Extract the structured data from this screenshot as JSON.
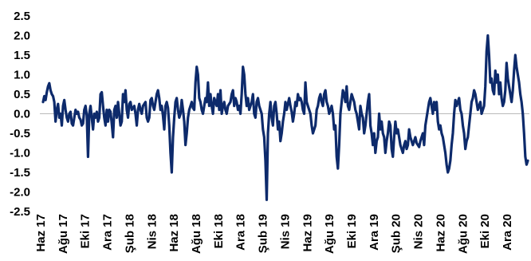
{
  "chart_data": {
    "type": "line",
    "title": "",
    "xlabel": "",
    "ylabel": "",
    "ylim": [
      -2.5,
      2.5
    ],
    "y_ticks": [
      "2.5",
      "2.0",
      "1.5",
      "1.0",
      "0.5",
      "0.0",
      "-0.5",
      "-1.0",
      "-1.5",
      "-2.0",
      "-2.5"
    ],
    "y_tick_values": [
      2.5,
      2.0,
      1.5,
      1.0,
      0.5,
      0.0,
      -0.5,
      -1.0,
      -1.5,
      -2.0,
      -2.5
    ],
    "x_ticks": [
      "Haz 17",
      "Ağu 17",
      "Eki 17",
      "Ara 17",
      "Şub 18",
      "Nis 18",
      "Haz 18",
      "Ağu 18",
      "Eki 18",
      "Ara 18",
      "Şub 19",
      "Nis 19",
      "Haz 19",
      "Ağu 19",
      "Eki 19",
      "Ara 19",
      "Şub 20",
      "Nis 20",
      "Haz 20",
      "Ağu 20",
      "Eki 20",
      "Ara 20"
    ],
    "grid": false,
    "legend": "none",
    "series_color": "#0d2a6b",
    "series": [
      {
        "x_start": "Haz 17",
        "x_end": "Ara 20+",
        "values": [
          0.3,
          0.45,
          0.35,
          0.55,
          0.7,
          0.78,
          0.6,
          0.5,
          0.45,
          0.3,
          -0.2,
          0.1,
          0.25,
          -0.1,
          0.0,
          -0.3,
          0.2,
          0.35,
          0.1,
          -0.1,
          -0.2,
          0.0,
          0.05,
          -0.25,
          -0.3,
          -0.1,
          0.1,
          0.0,
          0.05,
          -0.1,
          -0.15,
          -0.3,
          -0.25,
          0.1,
          0.2,
          -0.05,
          -1.1,
          0.0,
          0.2,
          -0.1,
          -0.4,
          0.0,
          -0.1,
          0.05,
          -0.2,
          -0.1,
          0.5,
          0.55,
          0.2,
          -0.1,
          -0.3,
          0.1,
          -0.2,
          0.1,
          0.05,
          -0.25,
          -0.6,
          0.1,
          0.2,
          -0.1,
          0.3,
          0.0,
          -0.3,
          -0.2,
          0.5,
          0.3,
          0.6,
          0.1,
          -0.1,
          0.25,
          0.3,
          0.1,
          0.15,
          0.2,
          0.0,
          -0.3,
          0.1,
          0.25,
          0.1,
          0.0,
          0.2,
          0.25,
          0.3,
          -0.1,
          -0.2,
          -0.1,
          0.35,
          0.4,
          0.2,
          0.1,
          0.3,
          0.5,
          0.6,
          0.4,
          0.1,
          0.2,
          -0.05,
          -0.4,
          0.2,
          0.3,
          0.15,
          -0.3,
          -1.0,
          -1.5,
          -0.6,
          -0.1,
          0.3,
          0.4,
          0.1,
          -0.1,
          0.0,
          0.35,
          0.1,
          -0.2,
          -0.8,
          -0.5,
          -0.1,
          0.1,
          0.2,
          0.3,
          0.15,
          0.1,
          0.8,
          1.2,
          1.0,
          0.4,
          0.3,
          0.1,
          0.0,
          0.2,
          0.4,
          0.3,
          0.8,
          0.2,
          0.5,
          0.2,
          0.0,
          0.4,
          0.3,
          0.2,
          0.5,
          0.1,
          0.6,
          0.0,
          0.2,
          0.3,
          0.1,
          0.0,
          0.2,
          0.25,
          0.3,
          0.5,
          0.6,
          0.2,
          0.4,
          0.3,
          0.1,
          0.2,
          0.0,
          0.5,
          1.2,
          1.0,
          0.5,
          0.2,
          0.4,
          0.1,
          0.2,
          0.3,
          0.5,
          0.0,
          -0.1,
          0.3,
          0.4,
          0.2,
          0.1,
          0.0,
          -0.4,
          -0.6,
          -1.2,
          -2.2,
          -0.5,
          0.0,
          0.3,
          -0.1,
          -0.3,
          0.2,
          0.3,
          0.0,
          -0.4,
          -0.2,
          -0.7,
          -0.5,
          -0.2,
          0.0,
          0.3,
          0.1,
          0.25,
          0.4,
          0.2,
          0.05,
          -0.2,
          0.0,
          0.3,
          0.2,
          0.5,
          0.35,
          0.4,
          0.3,
          0.1,
          0.0,
          0.8,
          0.3,
          0.2,
          0.1,
          0.0,
          -0.3,
          -0.5,
          -0.4,
          -0.3,
          0.1,
          0.2,
          0.4,
          0.5,
          0.3,
          0.2,
          0.5,
          0.6,
          0.3,
          0.2,
          0.0,
          0.1,
          0.2,
          0.0,
          -0.4,
          -0.3,
          -1.1,
          -1.4,
          -0.8,
          0.0,
          0.3,
          0.6,
          0.5,
          0.3,
          0.7,
          0.2,
          0.1,
          0.3,
          0.5,
          0.4,
          0.3,
          0.1,
          0.0,
          -0.2,
          -0.4,
          0.2,
          0.0,
          -0.1,
          -0.5,
          -0.3,
          0.0,
          0.3,
          0.5,
          -0.3,
          -0.5,
          -0.8,
          -0.5,
          -1.0,
          -0.7,
          -0.6,
          0.0,
          -0.4,
          -0.2,
          -0.5,
          -0.6,
          -1.0,
          -0.7,
          -0.5,
          -0.2,
          -0.3,
          -0.9,
          -1.1,
          -0.6,
          -0.2,
          -0.5,
          -0.4,
          -0.6,
          -0.8,
          -0.9,
          -1.0,
          -0.8,
          -0.7,
          -0.9,
          -0.8,
          -0.4,
          -0.6,
          -0.7,
          -0.8,
          -0.7,
          -0.6,
          -0.75,
          -0.8,
          -0.85,
          -0.7,
          -0.6,
          -0.5,
          -0.8,
          -0.3,
          -0.1,
          0.1,
          0.3,
          0.4,
          0.2,
          0.0,
          0.3,
          0.1,
          0.3,
          -0.2,
          -0.4,
          -0.3,
          -0.5,
          -0.6,
          -0.8,
          -1.0,
          -1.3,
          -1.5,
          -1.4,
          -1.2,
          -0.8,
          -0.5,
          0.0,
          0.35,
          0.2,
          0.3,
          0.4,
          0.1,
          0.0,
          -0.3,
          -0.5,
          -0.9,
          -0.7,
          -0.6,
          -0.3,
          0.0,
          0.3,
          0.4,
          0.6,
          0.5,
          0.3,
          0.1,
          0.2,
          0.3,
          0.0,
          0.1,
          0.2,
          0.7,
          1.6,
          2.0,
          1.5,
          0.8,
          0.9,
          0.6,
          0.5,
          1.1,
          0.8,
          1.0,
          0.5,
          0.8,
          0.4,
          0.2,
          0.3,
          0.6,
          1.3,
          0.9,
          0.7,
          0.5,
          0.3,
          0.6,
          1.1,
          1.5,
          1.2,
          1.0,
          0.8,
          0.5,
          0.3,
          0.0,
          -0.5,
          -1.1,
          -1.3,
          -1.2
        ]
      }
    ]
  }
}
